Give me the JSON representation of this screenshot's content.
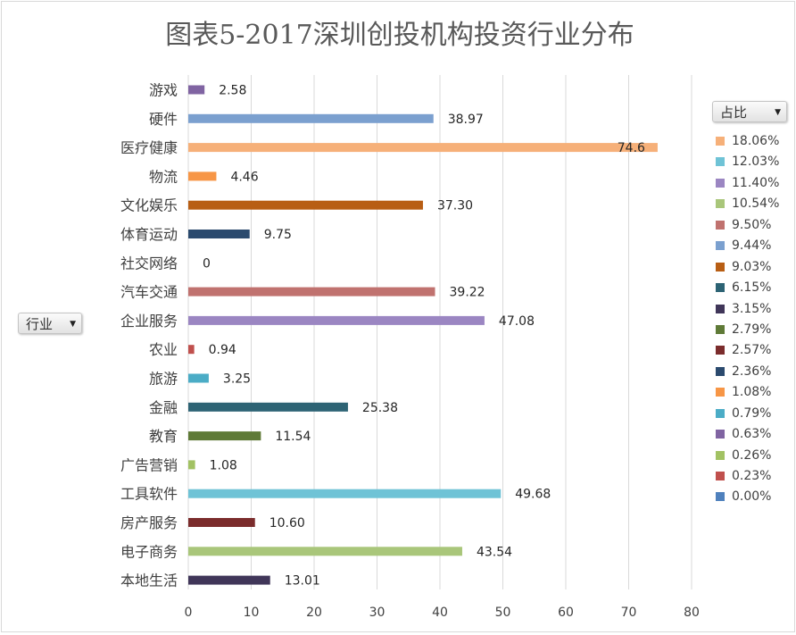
{
  "chart_data": {
    "type": "bar",
    "orientation": "horizontal",
    "title": "图表5-2017深圳创投机构投资行业分布",
    "categories": [
      "游戏",
      "硬件",
      "医疗健康",
      "物流",
      "文化娱乐",
      "体育运动",
      "社交网络",
      "汽车交通",
      "企业服务",
      "农业",
      "旅游",
      "金融",
      "教育",
      "广告营销",
      "工具软件",
      "房产服务",
      "电子商务",
      "本地生活"
    ],
    "values": [
      2.58,
      38.97,
      74.6,
      4.46,
      37.3,
      9.75,
      0,
      39.22,
      47.08,
      0.94,
      3.25,
      25.38,
      11.54,
      1.08,
      49.68,
      10.6,
      43.54,
      13.01
    ],
    "value_labels": [
      "2.58",
      "38.97",
      "74.6",
      "4.46",
      "37.30",
      "9.75",
      "0",
      "39.22",
      "47.08",
      "0.94",
      "3.25",
      "25.38",
      "11.54",
      "1.08",
      "49.68",
      "10.60",
      "43.54",
      "13.01"
    ],
    "colors": [
      "#8064a2",
      "#7ba0cf",
      "#f6b079",
      "#f79646",
      "#b85e14",
      "#2b4a6e",
      "#4f81bd",
      "#c0726f",
      "#9b86c2",
      "#c0504d",
      "#4bacc6",
      "#2d6374",
      "#5f7a37",
      "#a2c263",
      "#6fc3d6",
      "#7b2c2c",
      "#a9c67a",
      "#403659"
    ],
    "xlim": [
      0,
      80
    ],
    "xticks": [
      0,
      10,
      20,
      30,
      40,
      50,
      60,
      70,
      80
    ],
    "grid": true,
    "legend": {
      "placement": "right",
      "items": [
        {
          "label": "18.06%",
          "color": "#f6b079"
        },
        {
          "label": "12.03%",
          "color": "#6fc3d6"
        },
        {
          "label": "11.40%",
          "color": "#9b86c2"
        },
        {
          "label": "10.54%",
          "color": "#a9c67a"
        },
        {
          "label": "9.50%",
          "color": "#c0726f"
        },
        {
          "label": "9.44%",
          "color": "#7ba0cf"
        },
        {
          "label": "9.03%",
          "color": "#b85e14"
        },
        {
          "label": "6.15%",
          "color": "#2d6374"
        },
        {
          "label": "3.15%",
          "color": "#403659"
        },
        {
          "label": "2.79%",
          "color": "#5f7a37"
        },
        {
          "label": "2.57%",
          "color": "#7b2c2c"
        },
        {
          "label": "2.36%",
          "color": "#2b4a6e"
        },
        {
          "label": "1.08%",
          "color": "#f79646"
        },
        {
          "label": "0.79%",
          "color": "#4bacc6"
        },
        {
          "label": "0.63%",
          "color": "#8064a2"
        },
        {
          "label": "0.26%",
          "color": "#a2c263"
        },
        {
          "label": "0.23%",
          "color": "#c0504d"
        },
        {
          "label": "0.00%",
          "color": "#4f81bd"
        }
      ]
    }
  },
  "filters": {
    "legend_field": "占比",
    "axis_field": "行业",
    "arrow": "▼"
  }
}
